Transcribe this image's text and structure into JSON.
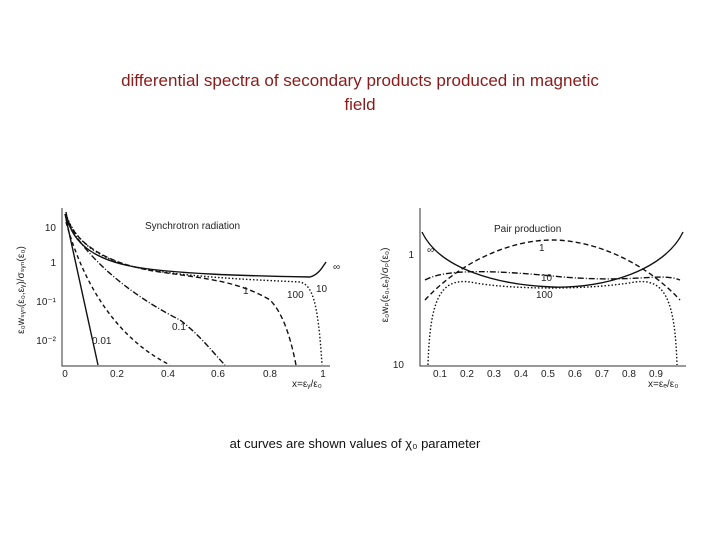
{
  "title": "differential spectra of secondary products produced in magnetic field",
  "figures": [
    {
      "title": "Synchrotron radiation",
      "y_label": "ε₀wₛᵧₙ(ε₀,εᵧ)/σₛᵧₙ(ε₀)",
      "x_label": "x=εᵧ/ε₀",
      "xticks": [
        "0",
        "0.2",
        "0.4",
        "0.6",
        "0.8",
        "1"
      ],
      "yticks": [
        "10",
        "1",
        "10⁻¹",
        "10⁻²"
      ],
      "curve_labels": [
        "∞",
        "10",
        "1",
        "100",
        "0.1",
        "0.01"
      ]
    },
    {
      "title": "Pair production",
      "y_label": "ε₀wₚ(ε₀,εₑ)/σₚ(ε₀)",
      "x_label": "x=εₑ/ε₀",
      "xticks": [
        "0.1",
        "0.2",
        "0.3",
        "0.4",
        "0.5",
        "0.6",
        "0.7",
        "0.8",
        "0.9"
      ],
      "yticks": [
        "1",
        "10"
      ],
      "curve_labels": [
        "∞",
        "1",
        "10",
        "100"
      ]
    }
  ],
  "caption": "at curves are shown values of χ₀ parameter"
}
